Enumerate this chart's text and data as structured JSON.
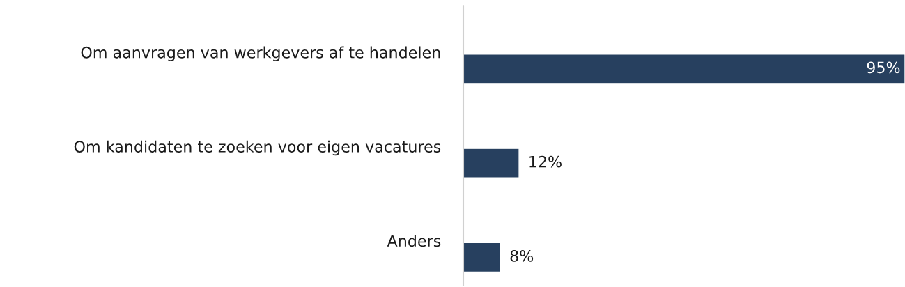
{
  "chart_data": {
    "type": "bar",
    "orientation": "horizontal",
    "categories": [
      "Om aanvragen van werkgevers af te handelen",
      "Om kandidaten te zoeken voor eigen vacatures",
      "Anders"
    ],
    "values": [
      95,
      12,
      8
    ],
    "value_labels": [
      "95%",
      "12%",
      "8%"
    ],
    "color": "#27405f"
  }
}
